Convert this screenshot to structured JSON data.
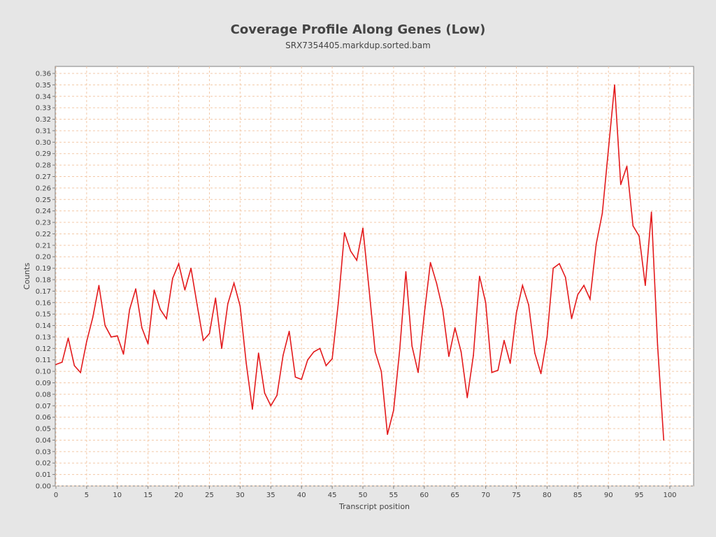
{
  "chart_data": {
    "type": "line",
    "title": "Coverage Profile Along Genes (Low)",
    "subtitle": "SRX7354405.markdup.sorted.bam",
    "xlabel": "Transcript position",
    "ylabel": "Counts",
    "xlim": [
      0,
      104
    ],
    "ylim": [
      0,
      0.365
    ],
    "x_ticks": [
      0,
      5,
      10,
      15,
      20,
      25,
      30,
      35,
      40,
      45,
      50,
      55,
      60,
      65,
      70,
      75,
      80,
      85,
      90,
      95,
      100
    ],
    "y_ticks": [
      0.0,
      0.01,
      0.02,
      0.03,
      0.04,
      0.05,
      0.06,
      0.07,
      0.08,
      0.09,
      0.1,
      0.11,
      0.12,
      0.13,
      0.14,
      0.15,
      0.16,
      0.17,
      0.18,
      0.19,
      0.2,
      0.21,
      0.22,
      0.23,
      0.24,
      0.25,
      0.26,
      0.27,
      0.28,
      0.29,
      0.3,
      0.31,
      0.32,
      0.33,
      0.34,
      0.35,
      0.36
    ],
    "grid": true,
    "series": [
      {
        "color": "#e31a1c",
        "x": [
          0,
          1,
          2,
          3,
          4,
          5,
          6,
          7,
          8,
          9,
          10,
          11,
          12,
          13,
          14,
          15,
          16,
          17,
          18,
          19,
          20,
          21,
          22,
          23,
          24,
          25,
          26,
          27,
          28,
          29,
          30,
          31,
          32,
          33,
          34,
          35,
          36,
          37,
          38,
          39,
          40,
          41,
          42,
          43,
          44,
          45,
          46,
          47,
          48,
          49,
          50,
          51,
          52,
          53,
          54,
          55,
          56,
          57,
          58,
          59,
          60,
          61,
          62,
          63,
          64,
          65,
          66,
          67,
          68,
          69,
          70,
          71,
          72,
          73,
          74,
          75,
          76,
          77,
          78,
          79,
          80,
          81,
          82,
          83,
          84,
          85,
          86,
          87,
          88,
          89,
          90,
          91,
          92,
          93,
          94,
          95,
          96,
          97,
          98,
          99
        ],
        "y": [
          0.106,
          0.108,
          0.129,
          0.105,
          0.099,
          0.126,
          0.147,
          0.175,
          0.14,
          0.13,
          0.131,
          0.115,
          0.154,
          0.172,
          0.138,
          0.124,
          0.171,
          0.154,
          0.146,
          0.181,
          0.194,
          0.171,
          0.19,
          0.158,
          0.127,
          0.133,
          0.164,
          0.12,
          0.159,
          0.177,
          0.157,
          0.107,
          0.067,
          0.116,
          0.081,
          0.07,
          0.079,
          0.114,
          0.135,
          0.095,
          0.093,
          0.11,
          0.117,
          0.12,
          0.105,
          0.111,
          0.16,
          0.221,
          0.205,
          0.197,
          0.225,
          0.172,
          0.117,
          0.1,
          0.045,
          0.066,
          0.119,
          0.187,
          0.122,
          0.099,
          0.15,
          0.195,
          0.177,
          0.154,
          0.113,
          0.138,
          0.117,
          0.077,
          0.114,
          0.183,
          0.16,
          0.099,
          0.101,
          0.127,
          0.107,
          0.151,
          0.175,
          0.158,
          0.116,
          0.098,
          0.13,
          0.19,
          0.194,
          0.182,
          0.146,
          0.167,
          0.175,
          0.163,
          0.211,
          0.238,
          0.294,
          0.35,
          0.263,
          0.279,
          0.227,
          0.218,
          0.175,
          0.239,
          0.123,
          0.04
        ]
      }
    ]
  }
}
